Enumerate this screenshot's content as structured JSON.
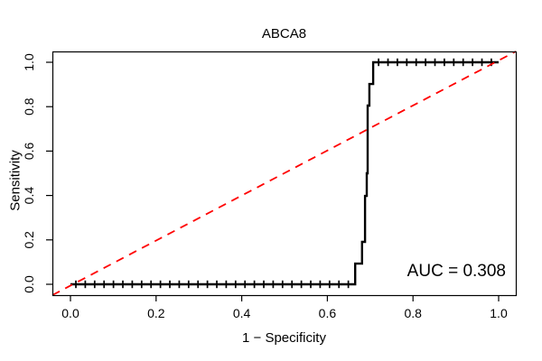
{
  "chart_data": {
    "type": "line",
    "title": "ABCA8",
    "xlabel": "1 − Specificity",
    "ylabel": "Sensitivity",
    "xlim": [
      0,
      1
    ],
    "ylim": [
      0,
      1
    ],
    "grid": false,
    "legend": false,
    "xticks": [
      {
        "value": 0.0,
        "label": "0.0"
      },
      {
        "value": 0.2,
        "label": "0.2"
      },
      {
        "value": 0.4,
        "label": "0.4"
      },
      {
        "value": 0.6,
        "label": "0.6"
      },
      {
        "value": 0.8,
        "label": "0.8"
      },
      {
        "value": 1.0,
        "label": "1.0"
      }
    ],
    "yticks": [
      {
        "value": 0.0,
        "label": "0.0"
      },
      {
        "value": 0.2,
        "label": "0.2"
      },
      {
        "value": 0.4,
        "label": "0.4"
      },
      {
        "value": 0.6,
        "label": "0.6"
      },
      {
        "value": 0.8,
        "label": "0.8"
      },
      {
        "value": 1.0,
        "label": "1.0"
      }
    ],
    "annotation": {
      "text": "AUC = 0.308",
      "auc": 0.308
    },
    "series": [
      {
        "name": "roc-curve",
        "style": "step",
        "color": "#000000",
        "line_width": 2.4,
        "marker": "|",
        "points": [
          [
            0,
            0
          ],
          [
            0.665,
            0
          ],
          [
            0.665,
            0.093
          ],
          [
            0.681,
            0.093
          ],
          [
            0.681,
            0.191
          ],
          [
            0.688,
            0.191
          ],
          [
            0.688,
            0.398
          ],
          [
            0.692,
            0.398
          ],
          [
            0.692,
            0.5
          ],
          [
            0.694,
            0.5
          ],
          [
            0.694,
            0.805
          ],
          [
            0.698,
            0.805
          ],
          [
            0.698,
            0.902
          ],
          [
            0.707,
            0.902
          ],
          [
            0.707,
            1
          ],
          [
            1,
            1
          ]
        ]
      },
      {
        "name": "chance-diagonal",
        "style": "dashed",
        "color": "#ff0000",
        "line_width": 1.8,
        "points": [
          [
            0,
            0
          ],
          [
            1,
            1
          ]
        ]
      }
    ]
  }
}
